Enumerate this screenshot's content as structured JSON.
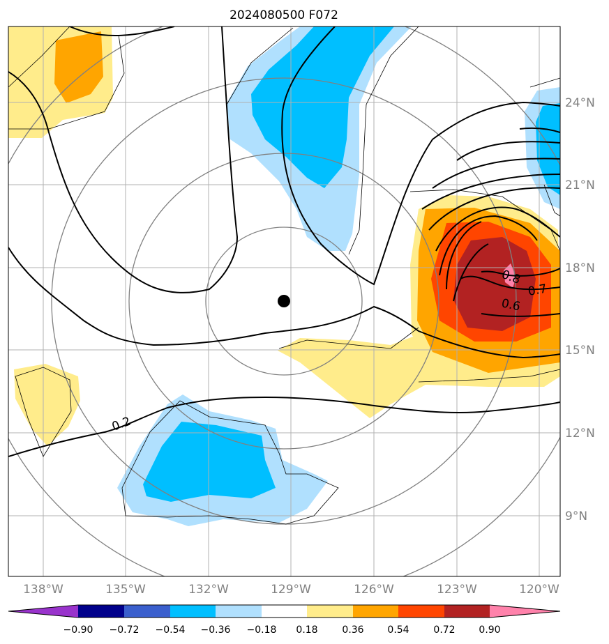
{
  "title": "2024080500 F072",
  "longitude_labels": [
    "138°W",
    "135°W",
    "132°W",
    "129°W",
    "126°W",
    "123°W",
    "120°W"
  ],
  "latitude_labels": [
    "24°N",
    "21°N",
    "18°N",
    "15°N",
    "12°N",
    "9°N"
  ],
  "contour_labels": [
    "0.2",
    "0.6",
    "0.7",
    "0.8"
  ],
  "colorbar": {
    "ticks": [
      "−0.90",
      "−0.72",
      "−0.54",
      "−0.36",
      "−0.18",
      "0.18",
      "0.36",
      "0.54",
      "0.72",
      "0.90"
    ],
    "colors": [
      "#9933cc",
      "#00008b",
      "#3a5fcd",
      "#00bfff",
      "#b0e0fe",
      "#ffffff",
      "#ffec8b",
      "#ffa500",
      "#ff4500",
      "#b22222",
      "#ff82ab"
    ]
  },
  "colors": {
    "pos_1": "#ffec8b",
    "pos_2": "#ffa500",
    "pos_3": "#ff4500",
    "pos_4": "#b22222",
    "pos_5": "#ff82ab",
    "neg_1": "#b0e0fe",
    "neg_2": "#00bfff",
    "contour": "#000000",
    "range_ring": "#808080",
    "grid": "#b0b0b0",
    "center_marker": "#000000"
  },
  "center_marker": {
    "lon": -129.3,
    "lat": 16.7
  }
}
